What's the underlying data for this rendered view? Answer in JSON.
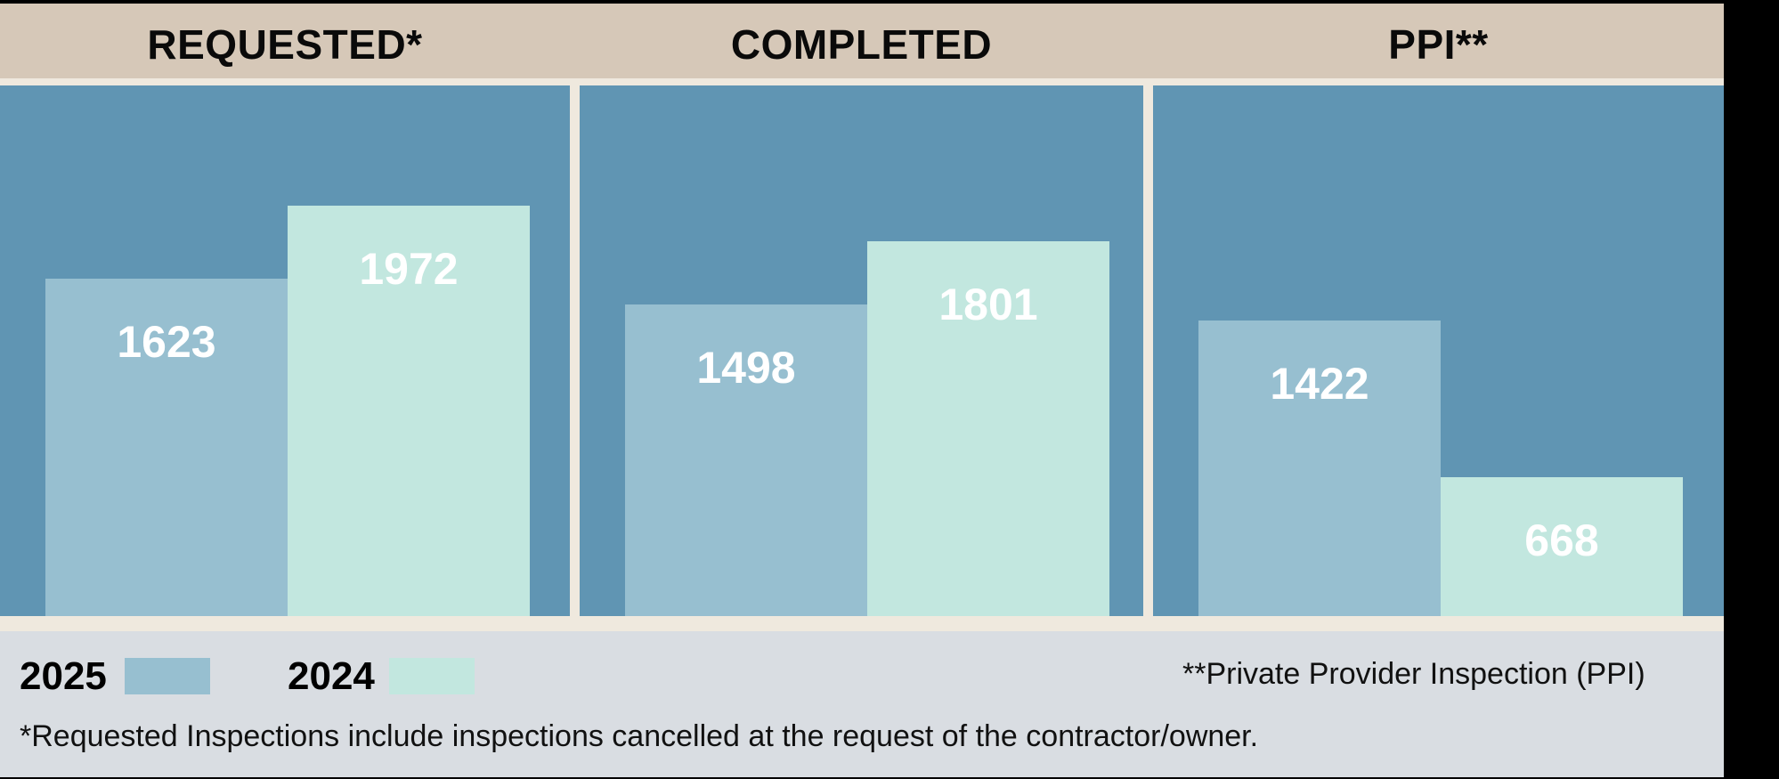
{
  "colors": {
    "series_2025": "#97bfd0",
    "series_2024": "#c2e7df",
    "panel": "#6095b3",
    "header": "#d6c8b8"
  },
  "legend": [
    {
      "label": "2025",
      "color": "#97bfd0"
    },
    {
      "label": "2024",
      "color": "#c2e7df"
    }
  ],
  "footnotes": {
    "ppi": "**Private Provider Inspection (PPI)",
    "requested": "*Requested Inspections include inspections cancelled at the request of the contractor/owner."
  },
  "chart_data": [
    {
      "type": "bar",
      "title": "REQUESTED*",
      "categories": [
        "2025",
        "2024"
      ],
      "values": [
        1623,
        1972
      ],
      "ylim": [
        0,
        2550
      ]
    },
    {
      "type": "bar",
      "title": "COMPLETED",
      "categories": [
        "2025",
        "2024"
      ],
      "values": [
        1498,
        1801
      ],
      "ylim": [
        0,
        2550
      ]
    },
    {
      "type": "bar",
      "title": "PPI**",
      "categories": [
        "2025",
        "2024"
      ],
      "values": [
        1422,
        668
      ],
      "ylim": [
        0,
        2550
      ]
    }
  ]
}
